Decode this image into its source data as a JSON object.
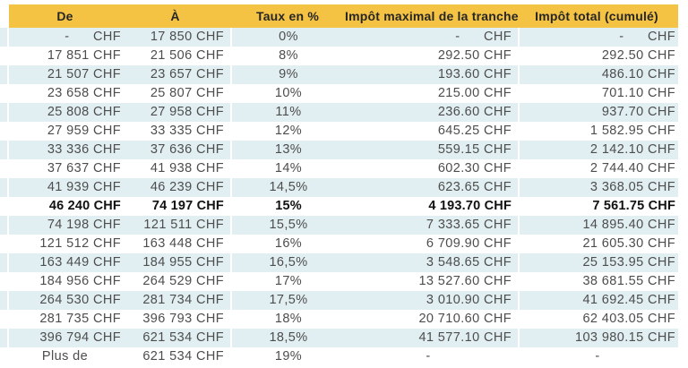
{
  "colors": {
    "header_bg": "#F5C343",
    "header_text": "#262626",
    "row_stripe_bg": "#E2EFF2",
    "row_plain_bg": "#FFFFFF",
    "body_text": "#4D4D4D",
    "bold_row_text": "#111111",
    "divider": "#FFFFFF"
  },
  "chart_data": {
    "type": "table",
    "columns": [
      "De",
      "À",
      "Taux en %",
      "Impôt maximal de la tranche",
      "Impôt total (cumulé)"
    ],
    "highlighted_row_index": 9,
    "rows": [
      {
        "cells": [
          "-      CHF",
          "17 850 CHF",
          "0%",
          "-      CHF",
          "-      CHF"
        ],
        "bold": false
      },
      {
        "cells": [
          "17 851 CHF",
          "21 506 CHF",
          "8%",
          "292.50 CHF",
          "292.50 CHF"
        ],
        "bold": false
      },
      {
        "cells": [
          "21 507 CHF",
          "23 657 CHF",
          "9%",
          "193.60 CHF",
          "486.10 CHF"
        ],
        "bold": false
      },
      {
        "cells": [
          "23 658 CHF",
          "25 807 CHF",
          "10%",
          "215.00 CHF",
          "701.10 CHF"
        ],
        "bold": false
      },
      {
        "cells": [
          "25 808 CHF",
          "27 958 CHF",
          "11%",
          "236.60 CHF",
          "937.70 CHF"
        ],
        "bold": false
      },
      {
        "cells": [
          "27 959 CHF",
          "33 335 CHF",
          "12%",
          "645.25 CHF",
          "1 582.95 CHF"
        ],
        "bold": false
      },
      {
        "cells": [
          "33 336 CHF",
          "37 636 CHF",
          "13%",
          "559.15 CHF",
          "2 142.10 CHF"
        ],
        "bold": false
      },
      {
        "cells": [
          "37 637 CHF",
          "41 938 CHF",
          "14%",
          "602.30 CHF",
          "2 744.40 CHF"
        ],
        "bold": false
      },
      {
        "cells": [
          "41 939 CHF",
          "46 239 CHF",
          "14,5%",
          "623.65 CHF",
          "3 368.05 CHF"
        ],
        "bold": false
      },
      {
        "cells": [
          "46 240 CHF",
          "74 197 CHF",
          "15%",
          "4 193.70 CHF",
          "7 561.75 CHF"
        ],
        "bold": true
      },
      {
        "cells": [
          "74 198 CHF",
          "121 511 CHF",
          "15,5%",
          "7 333.65 CHF",
          "14 895.40 CHF"
        ],
        "bold": false
      },
      {
        "cells": [
          "121 512 CHF",
          "163 448 CHF",
          "16%",
          "6 709.90 CHF",
          "21 605.30 CHF"
        ],
        "bold": false
      },
      {
        "cells": [
          "163 449 CHF",
          "184 955 CHF",
          "16,5%",
          "3 548.65 CHF",
          "25 153.95 CHF"
        ],
        "bold": false
      },
      {
        "cells": [
          "184 956 CHF",
          "264 529 CHF",
          "17%",
          "13 527.60 CHF",
          "38 681.55 CHF"
        ],
        "bold": false
      },
      {
        "cells": [
          "264 530 CHF",
          "281 734 CHF",
          "17,5%",
          "3 010.90 CHF",
          "41 692.45 CHF"
        ],
        "bold": false
      },
      {
        "cells": [
          "281 735 CHF",
          "396 793 CHF",
          "18%",
          "20 710.60 CHF",
          "62 403.05 CHF"
        ],
        "bold": false
      },
      {
        "cells": [
          "396 794 CHF",
          "621 534 CHF",
          "18,5%",
          "41 577.10 CHF",
          "103 980.15 CHF"
        ],
        "bold": false
      },
      {
        "cells": [
          "Plus de",
          "621 534 CHF",
          "19%",
          "-",
          "-"
        ],
        "bold": false,
        "aligns": [
          "center",
          "right",
          "center",
          "center",
          "center"
        ]
      }
    ]
  }
}
